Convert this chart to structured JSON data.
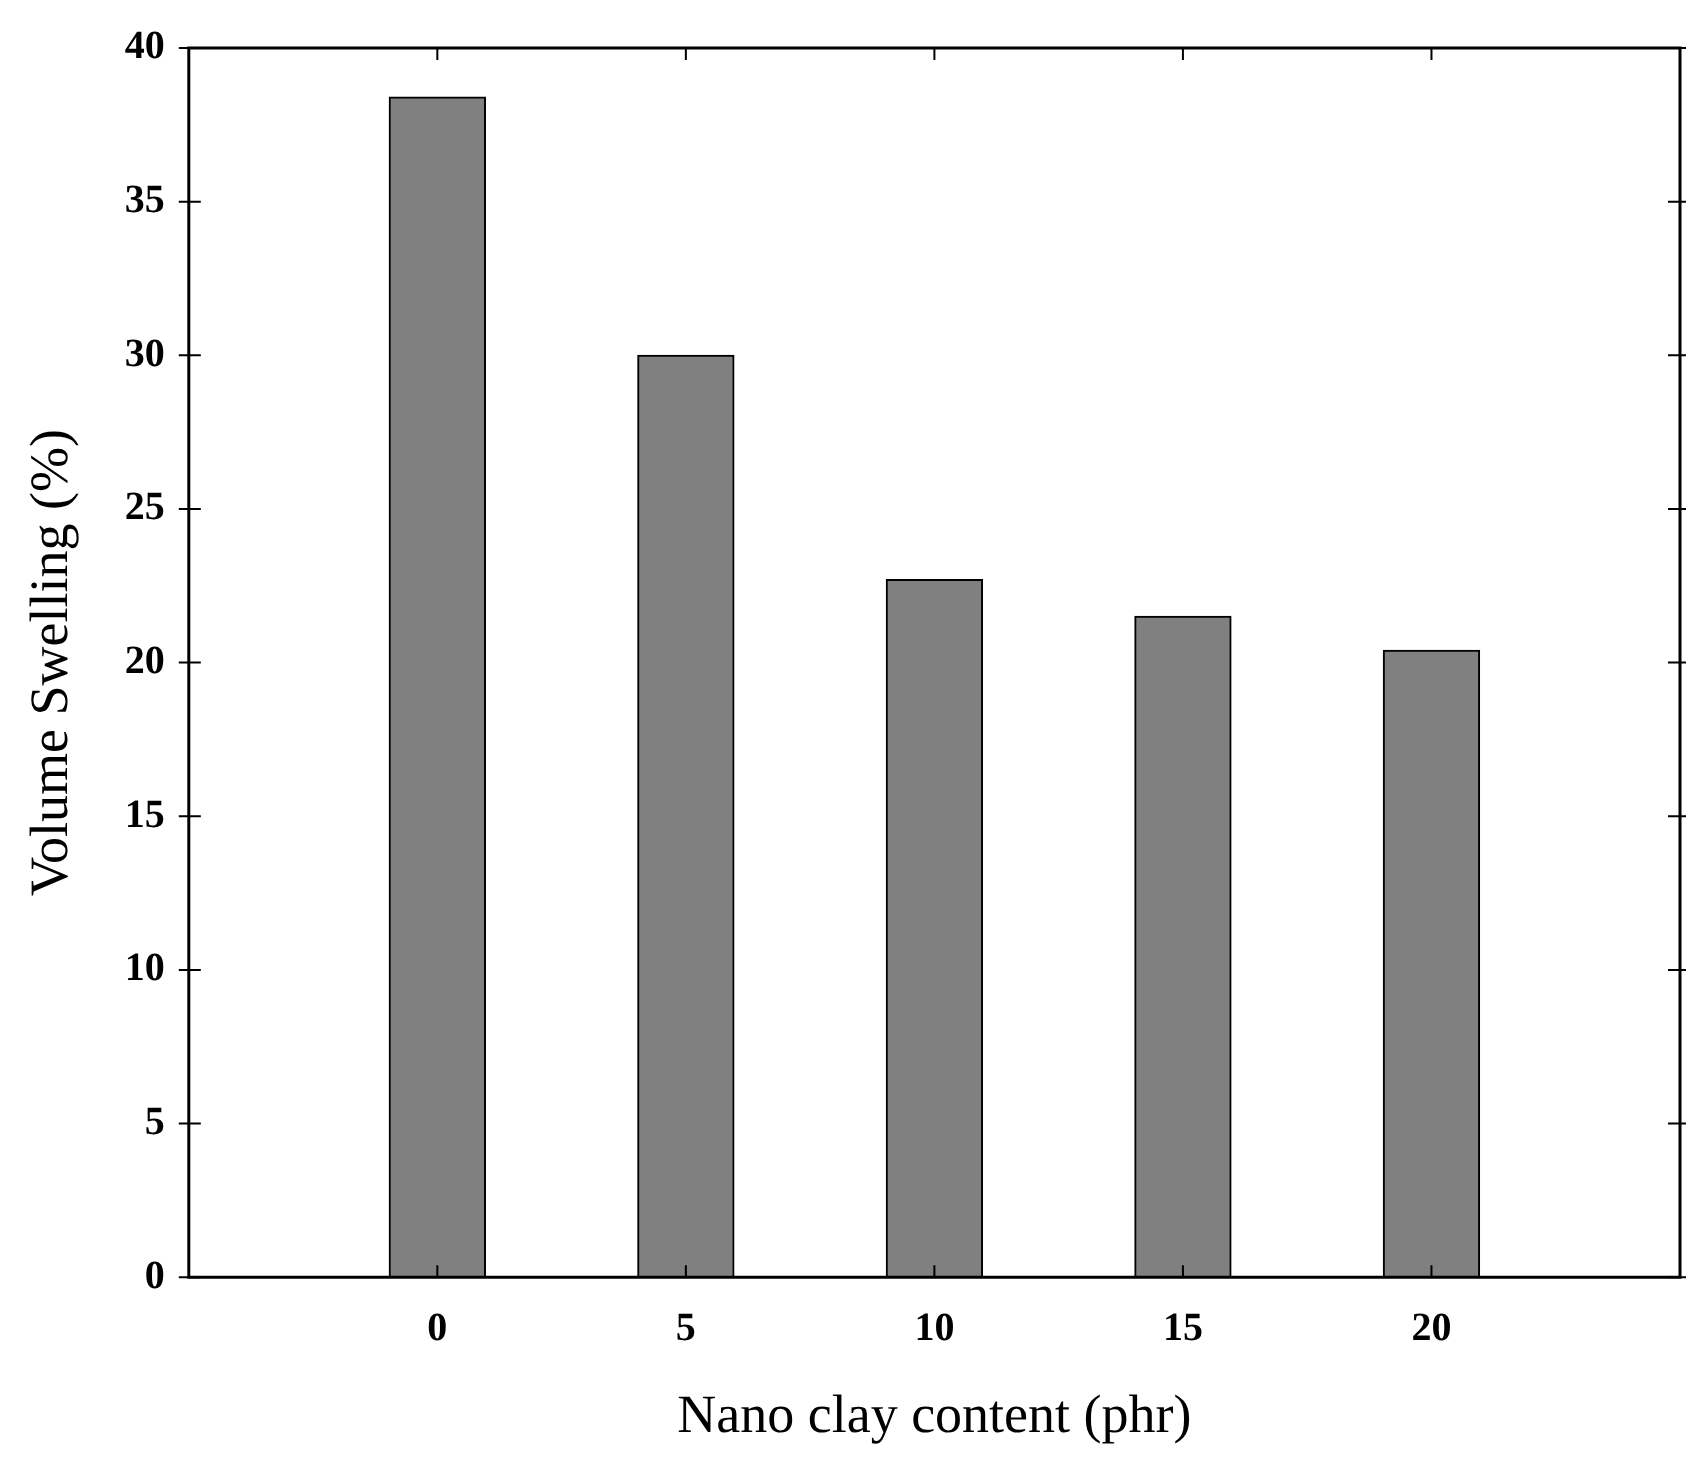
{
  "chart_data": {
    "type": "bar",
    "xlabel": "Nano clay content (phr)",
    "ylabel": "Volume Swelling (%)",
    "x": [
      0,
      5,
      10,
      15,
      20
    ],
    "values": [
      38.4,
      30.0,
      22.7,
      21.5,
      20.4
    ],
    "color": "#808080",
    "xlim": [
      -5,
      25
    ],
    "xticks": [
      0,
      5,
      10,
      15,
      20
    ],
    "ylim": [
      0,
      40
    ],
    "yticks": [
      0,
      5,
      10,
      15,
      20,
      25,
      30,
      35,
      40
    ],
    "grid": false,
    "legend": false
  }
}
